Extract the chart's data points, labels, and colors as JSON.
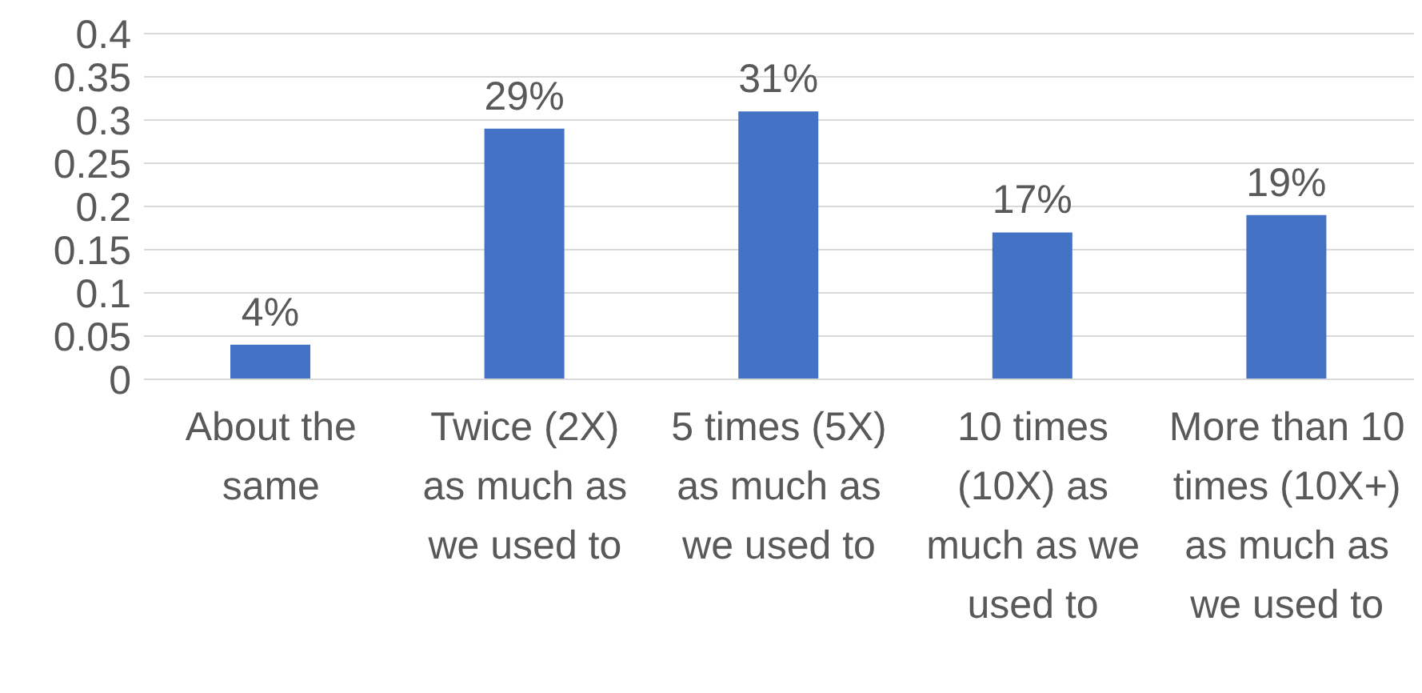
{
  "chart_data": {
    "type": "bar",
    "categories": [
      "About the same",
      "Twice (2X) as much as we used to",
      "5 times (5X) as much as we used to",
      "10 times (10X) as much as we used to",
      "More than 10 times (10X+) as much as we used to"
    ],
    "values": [
      0.04,
      0.29,
      0.31,
      0.17,
      0.19
    ],
    "value_labels": [
      "4%",
      "29%",
      "31%",
      "17%",
      "19%"
    ],
    "color": "#4472c4",
    "ylim": [
      0,
      0.4
    ],
    "yticks": [
      0,
      0.05,
      0.1,
      0.15,
      0.2,
      0.25,
      0.3,
      0.35,
      0.4
    ],
    "grid": "y",
    "legend": false
  }
}
